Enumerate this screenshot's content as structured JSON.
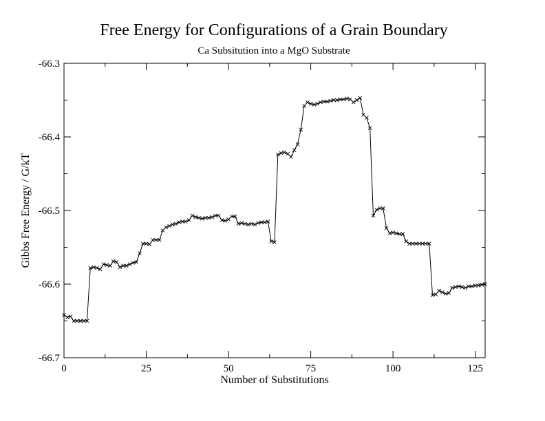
{
  "chart_data": {
    "type": "line",
    "title": "Free Energy for Configurations of a Grain Boundary",
    "subtitle": "Ca Subsitution into a MgO Substrate",
    "xlabel": "Number of Substitutions",
    "ylabel": "Gibbs Free Energy / G/kT",
    "xlim": [
      0,
      128
    ],
    "ylim": [
      -66.7,
      -66.3
    ],
    "x_ticks": [
      0,
      25,
      50,
      75,
      100,
      125
    ],
    "x_tick_labels": [
      "0",
      "25",
      "50",
      "75",
      "100",
      "125"
    ],
    "y_ticks": [
      -66.7,
      -66.6,
      -66.5,
      -66.4,
      -66.3
    ],
    "y_tick_labels": [
      "-66.7",
      "-66.6",
      "-66.5",
      "-66.4",
      "-66.3"
    ],
    "grid": false,
    "marker": "x",
    "line_color": "#000000",
    "series": [
      {
        "x": [
          0,
          1,
          2,
          3,
          4,
          5,
          6,
          7,
          8,
          9,
          10,
          11,
          12,
          13,
          14,
          15,
          16,
          17,
          18,
          19,
          20,
          21,
          22,
          23,
          24,
          25,
          26,
          27,
          28,
          29,
          30,
          31,
          32,
          33,
          34,
          35,
          36,
          37,
          38,
          39,
          40,
          41,
          42,
          43,
          44,
          45,
          46,
          47,
          48,
          49,
          50,
          51,
          52,
          53,
          54,
          55,
          56,
          57,
          58,
          59,
          60,
          61,
          62,
          63,
          64,
          65,
          66,
          67,
          68,
          69,
          70,
          71,
          72,
          73,
          74,
          75,
          76,
          77,
          78,
          79,
          80,
          81,
          82,
          83,
          84,
          85,
          86,
          87,
          88,
          89,
          90,
          91,
          92,
          93,
          94,
          95,
          96,
          97,
          98,
          99,
          100,
          101,
          102,
          103,
          104,
          105,
          106,
          107,
          108,
          109,
          110,
          111,
          112,
          113,
          114,
          115,
          116,
          117,
          118,
          119,
          120,
          121,
          122,
          123,
          124,
          125,
          126,
          127,
          128
        ],
        "y": [
          -66.642,
          -66.645,
          -66.644,
          -66.65,
          -66.65,
          -66.65,
          -66.65,
          -66.65,
          -66.578,
          -66.577,
          -66.578,
          -66.58,
          -66.573,
          -66.574,
          -66.575,
          -66.569,
          -66.57,
          -66.577,
          -66.575,
          -66.575,
          -66.573,
          -66.571,
          -66.57,
          -66.558,
          -66.545,
          -66.545,
          -66.546,
          -66.54,
          -66.54,
          -66.54,
          -66.527,
          -66.523,
          -66.521,
          -66.519,
          -66.518,
          -66.516,
          -66.515,
          -66.515,
          -66.513,
          -66.507,
          -66.509,
          -66.51,
          -66.511,
          -66.51,
          -66.51,
          -66.509,
          -66.507,
          -66.507,
          -66.513,
          -66.514,
          -66.512,
          -66.508,
          -66.508,
          -66.518,
          -66.517,
          -66.518,
          -66.519,
          -66.518,
          -66.519,
          -66.517,
          -66.516,
          -66.516,
          -66.515,
          -66.542,
          -66.543,
          -66.424,
          -66.422,
          -66.421,
          -66.423,
          -66.427,
          -66.418,
          -66.41,
          -66.39,
          -66.358,
          -66.353,
          -66.355,
          -66.356,
          -66.355,
          -66.353,
          -66.352,
          -66.352,
          -66.351,
          -66.35,
          -66.35,
          -66.349,
          -66.349,
          -66.348,
          -66.349,
          -66.353,
          -66.35,
          -66.347,
          -66.37,
          -66.374,
          -66.388,
          -66.507,
          -66.499,
          -66.497,
          -66.497,
          -66.524,
          -66.531,
          -66.53,
          -66.531,
          -66.532,
          -66.532,
          -66.542,
          -66.545,
          -66.545,
          -66.545,
          -66.545,
          -66.545,
          -66.545,
          -66.545,
          -66.615,
          -66.614,
          -66.609,
          -66.611,
          -66.613,
          -66.612,
          -66.605,
          -66.604,
          -66.603,
          -66.604,
          -66.605,
          -66.603,
          -66.603,
          -66.602,
          -66.602,
          -66.601,
          -66.6
        ]
      }
    ]
  }
}
